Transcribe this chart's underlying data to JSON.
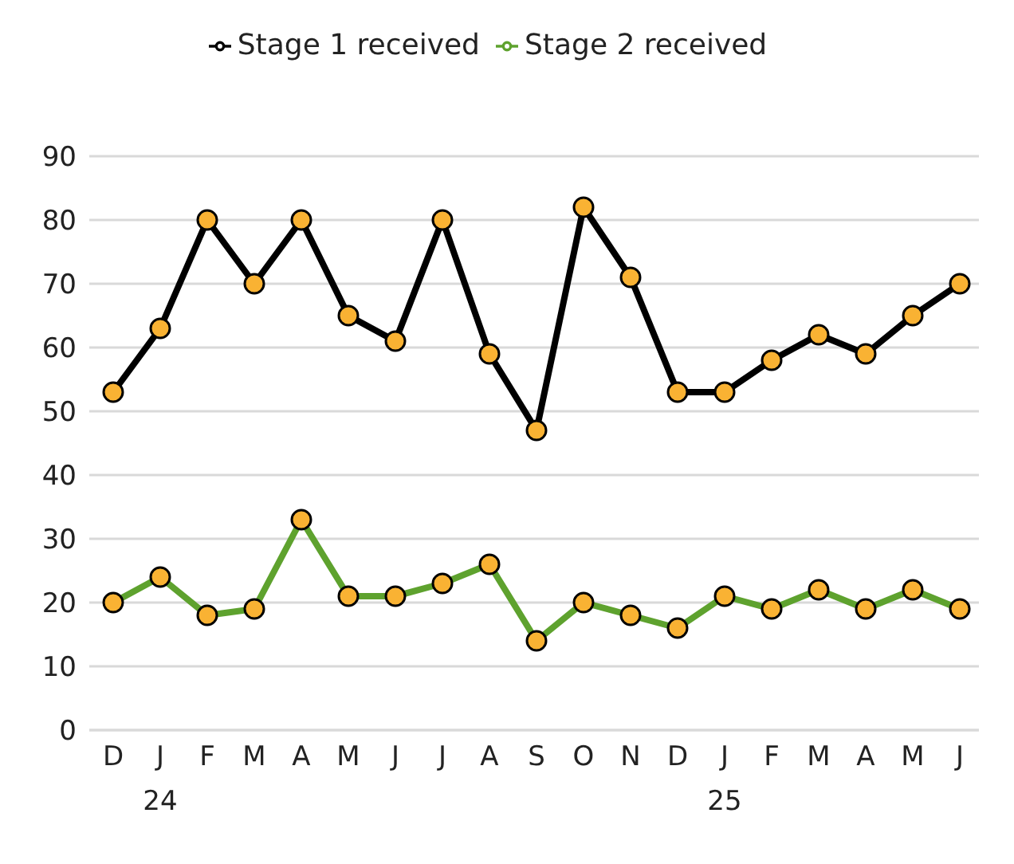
{
  "chart_data": {
    "type": "line",
    "categories": [
      "D",
      "J\n24",
      "F",
      "M",
      "A",
      "M",
      "J",
      "J",
      "A",
      "S",
      "O",
      "N",
      "D",
      "J\n25",
      "F",
      "M",
      "A",
      "M",
      "J"
    ],
    "series": [
      {
        "name": "Stage 1 received",
        "color": "#000000",
        "values": [
          53,
          63,
          80,
          70,
          80,
          65,
          61,
          80,
          59,
          47,
          82,
          71,
          53,
          53,
          58,
          62,
          59,
          65,
          70
        ]
      },
      {
        "name": "Stage 2 received",
        "color": "#5ea22e",
        "values": [
          20,
          24,
          18,
          19,
          33,
          21,
          21,
          23,
          26,
          14,
          20,
          18,
          16,
          21,
          19,
          22,
          19,
          22,
          19
        ]
      }
    ],
    "ylim": [
      0,
      90
    ],
    "yticks": [
      0,
      10,
      20,
      30,
      40,
      50,
      60,
      70,
      80,
      90
    ],
    "grid": "y",
    "legend": "top",
    "marker": "circle",
    "line_style": "solid"
  }
}
